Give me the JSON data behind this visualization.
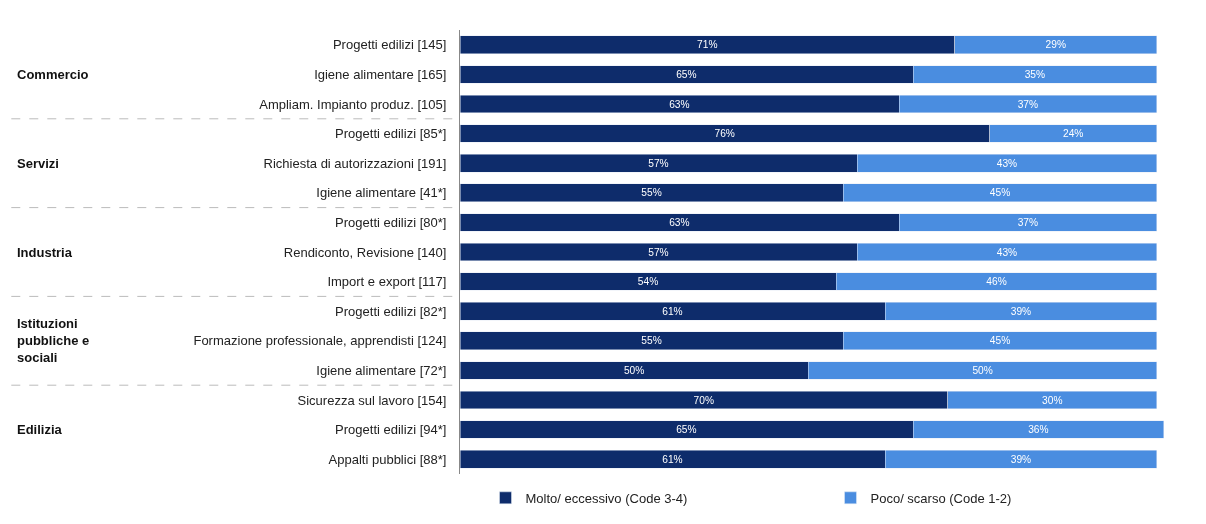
{
  "chart_data": {
    "type": "bar",
    "orientation": "horizontal",
    "stacked": true,
    "categories": [
      "Progetti edilizi [145]",
      "Igiene alimentare [165]",
      "Ampliam. Impianto produz. [105]",
      "Progetti edilizi [85*]",
      "Richiesta di autorizzazioni [191]",
      "Igiene alimentare [41*]",
      "Progetti edilizi [80*]",
      "Rendiconto, Revisione [140]",
      "Import e export [117]",
      "Progetti edilizi [82*]",
      "Formazione professionale, apprendisti [124]",
      "Igiene alimentare [72*]",
      "Sicurezza sul lavoro [154]",
      "Progetti edilizi [94*]",
      "Appalti pubblici [88*]"
    ],
    "series": [
      {
        "name": "Molto/ eccessivo (Code 3-4)",
        "color": "#0e2c6b",
        "values": [
          71,
          65,
          63,
          76,
          57,
          55,
          63,
          57,
          54,
          61,
          55,
          50,
          70,
          65,
          61
        ],
        "value_labels": [
          "71%",
          "65%",
          "63%",
          "76%",
          "57%",
          "55%",
          "63%",
          "57%",
          "54%",
          "61%",
          "55%",
          "50%",
          "70%",
          "65%",
          "61%"
        ]
      },
      {
        "name": "Poco/ scarso (Code 1-2)",
        "color": "#4a8de0",
        "values": [
          29,
          35,
          37,
          24,
          43,
          45,
          37,
          43,
          46,
          39,
          45,
          50,
          30,
          36,
          39
        ],
        "value_labels": [
          "29%",
          "35%",
          "37%",
          "24%",
          "43%",
          "45%",
          "37%",
          "43%",
          "46%",
          "39%",
          "45%",
          "50%",
          "30%",
          "36%",
          "39%"
        ]
      }
    ],
    "annotations": [
      "Commercio",
      "Servizi",
      "Industria",
      "Istituzioni\npubbliche e\nsociali",
      "Edilizia"
    ],
    "legend": "bottom"
  }
}
